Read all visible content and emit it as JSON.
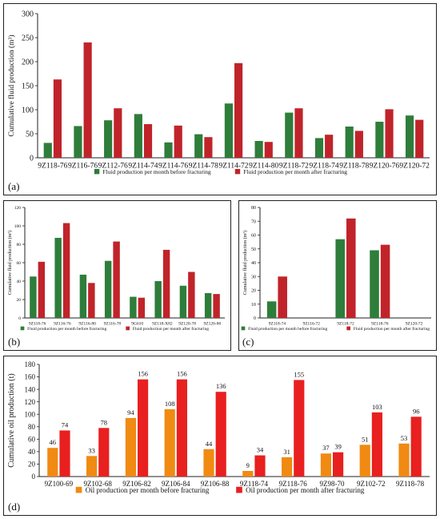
{
  "panel_labels": [
    "(a)",
    "(b)",
    "(c)",
    "(d)"
  ],
  "colors": {
    "before": "#2e7d3a",
    "after": "#c0242a",
    "oil_before": "#f08a12",
    "oil_after": "#e8201f",
    "label_color": "#6a1a5a"
  },
  "chart_data": [
    {
      "id": "a",
      "type": "bar",
      "ylabel": "Cumulative fluid production (m³)",
      "ylim": [
        0,
        300
      ],
      "yticks": [
        0,
        50,
        100,
        150,
        200,
        250,
        300
      ],
      "categories": [
        "9Z118-76",
        "9Z116-76",
        "9Z112-76",
        "9Z114-74",
        "9Z114-76",
        "9Z114-78",
        "9Z114-72",
        "9Z114-80",
        "9Z118-72",
        "9Z118-74",
        "9Z118-78",
        "9Z120-76",
        "9Z120-72"
      ],
      "series": [
        {
          "name": "Fluid production per month before fracturing",
          "values": [
            31,
            66,
            78,
            91,
            32,
            49,
            113,
            35,
            94,
            41,
            65,
            75,
            88
          ]
        },
        {
          "name": "Fluid production per month after fracturing",
          "values": [
            163,
            240,
            103,
            70,
            67,
            43,
            197,
            33,
            103,
            48,
            56,
            101,
            79
          ]
        }
      ],
      "legend_position": "bottom"
    },
    {
      "id": "b",
      "type": "bar",
      "ylabel": "Cumulative fluid production (m³)",
      "ylim": [
        0,
        120
      ],
      "yticks": [
        0,
        20,
        40,
        60,
        80,
        100,
        120
      ],
      "categories": [
        "9Z118-76",
        "9Z116-76",
        "9Z116-80",
        "9Z116-78",
        "9G610",
        "9Z118-X82",
        "9Z120-78",
        "9Z120-80"
      ],
      "series": [
        {
          "name": "Fluid production per month before fracturing",
          "values": [
            45,
            87,
            47,
            62,
            23,
            40,
            35,
            27
          ]
        },
        {
          "name": "Fluid production per month after fracturing",
          "values": [
            61,
            103,
            38,
            83,
            22,
            74,
            50,
            26
          ]
        }
      ],
      "legend_position": "bottom"
    },
    {
      "id": "c",
      "type": "bar",
      "ylabel": "Cumulative fluid production (m³)",
      "ylim": [
        0,
        80
      ],
      "yticks": [
        0,
        10,
        20,
        30,
        40,
        50,
        60,
        70,
        80
      ],
      "categories": [
        "9Z118-74",
        "9Z116-72",
        "9Z118-72",
        "9Z118-76",
        "9Z120-72"
      ],
      "series": [
        {
          "name": "Fluid production per month before fracturing",
          "values": [
            12,
            null,
            57,
            49,
            null
          ]
        },
        {
          "name": "Fluid production per month after fracturing",
          "values": [
            30,
            null,
            72,
            53,
            null
          ]
        }
      ],
      "legend_position": "bottom"
    },
    {
      "id": "d",
      "type": "bar",
      "ylabel": "Cumulative oil production (t)",
      "ylim": [
        0,
        180
      ],
      "yticks": [
        0,
        20,
        40,
        60,
        80,
        100,
        120,
        140,
        160,
        180
      ],
      "categories": [
        "9Z100-69",
        "9Z102-68",
        "9Z106-82",
        "9Z106-84",
        "9Z106-88",
        "9Z118-74",
        "9Z118-76",
        "9Z98-70",
        "9Z102-72",
        "9Z118-78"
      ],
      "series": [
        {
          "name": "Oil production per month before fracturing",
          "values": [
            46,
            33,
            94,
            108,
            44,
            9,
            31,
            37,
            51,
            53
          ]
        },
        {
          "name": "Oil production per month after fracturing",
          "values": [
            74,
            78,
            156,
            156,
            136,
            34,
            155,
            39,
            103,
            96
          ]
        }
      ],
      "data_labels": true,
      "legend_position": "bottom"
    }
  ]
}
